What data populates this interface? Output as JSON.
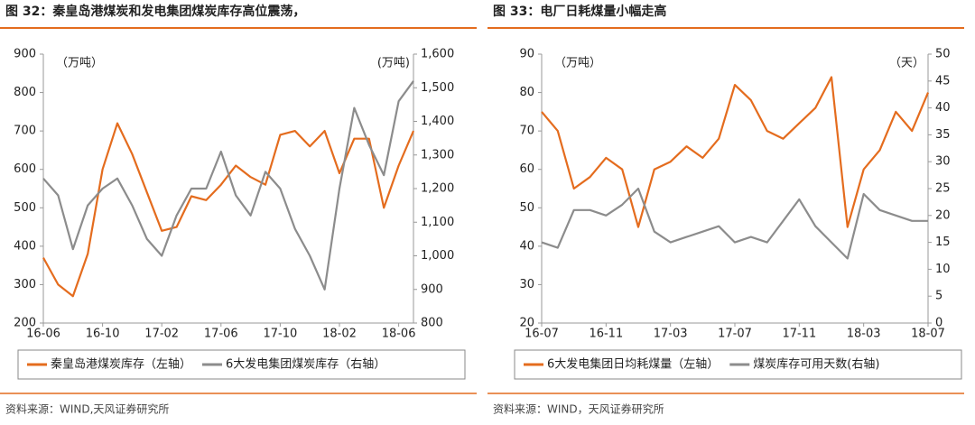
{
  "chart_data": [
    {
      "type": "line",
      "title": "图 32：秦皇岛港煤炭和发电集团煤炭库存高位震荡，",
      "ylabel": "（万吨）",
      "y2label": "(万吨)",
      "categories": [
        "16-06",
        null,
        null,
        null,
        "16-10",
        null,
        null,
        null,
        "17-02",
        null,
        null,
        null,
        "17-06",
        null,
        null,
        null,
        "17-10",
        null,
        null,
        null,
        "18-02",
        null,
        null,
        null,
        "18-06",
        null
      ],
      "series": [
        {
          "name": "秦皇岛港煤炭库存（左轴）",
          "color": "#e46c1e",
          "values": [
            370,
            300,
            270,
            380,
            600,
            720,
            640,
            540,
            440,
            450,
            530,
            520,
            560,
            610,
            580,
            560,
            690,
            700,
            660,
            700,
            590,
            680,
            680,
            500,
            610,
            700
          ]
        },
        {
          "name": "6大发电集团煤炭库存（右轴）",
          "color": "#8c8c8c",
          "axis": "y2",
          "values": [
            1230,
            1180,
            1020,
            1150,
            1200,
            1230,
            1150,
            1050,
            1000,
            1120,
            1200,
            1200,
            1310,
            1180,
            1120,
            1250,
            1200,
            1080,
            1000,
            900,
            1200,
            1440,
            1330,
            1240,
            1460,
            1520
          ]
        }
      ],
      "ylim": [
        200,
        900
      ],
      "yticks": [
        200,
        300,
        400,
        500,
        600,
        700,
        800,
        900
      ],
      "y2lim": [
        800,
        1600
      ],
      "y2ticks": [
        800,
        900,
        {
          "value": 1000,
          "label": "1,000"
        },
        {
          "value": 1100,
          "label": "1,100"
        },
        {
          "value": 1200,
          "label": "1,200"
        },
        {
          "value": 1300,
          "label": "1,300"
        },
        {
          "value": 1400,
          "label": "1,400"
        },
        {
          "value": 1500,
          "label": "1,500"
        },
        {
          "value": 1600,
          "label": "1,600"
        }
      ],
      "source": "资料来源：WIND,天风证券研究所"
    },
    {
      "type": "line",
      "title": "图 33：电厂日耗煤量小幅走高",
      "ylabel": "（万吨）",
      "y2label": "（天）",
      "categories": [
        "16-07",
        null,
        null,
        null,
        "16-11",
        null,
        null,
        null,
        "17-03",
        null,
        null,
        null,
        "17-07",
        null,
        null,
        null,
        "17-11",
        null,
        null,
        null,
        "18-03",
        null,
        null,
        null,
        "18-07"
      ],
      "series": [
        {
          "name": "6大发电集团日均耗煤量（左轴）",
          "color": "#e46c1e",
          "values": [
            75,
            70,
            55,
            58,
            63,
            60,
            45,
            60,
            62,
            66,
            63,
            68,
            82,
            78,
            70,
            68,
            72,
            76,
            84,
            45,
            60,
            65,
            75,
            70,
            80
          ]
        },
        {
          "name": "煤炭库存可用天数(右轴)",
          "color": "#8c8c8c",
          "axis": "y2",
          "values": [
            15,
            14,
            21,
            21,
            20,
            22,
            25,
            17,
            15,
            16,
            17,
            18,
            15,
            16,
            15,
            19,
            23,
            18,
            15,
            12,
            24,
            21,
            20,
            19,
            19
          ]
        }
      ],
      "ylim": [
        20,
        90
      ],
      "yticks": [
        20,
        30,
        40,
        50,
        60,
        70,
        80,
        90
      ],
      "y2lim": [
        0,
        50
      ],
      "y2ticks": [
        0,
        5,
        10,
        15,
        20,
        25,
        30,
        35,
        40,
        45,
        50
      ],
      "source": "资料来源：WIND，天风证券研究所"
    }
  ]
}
